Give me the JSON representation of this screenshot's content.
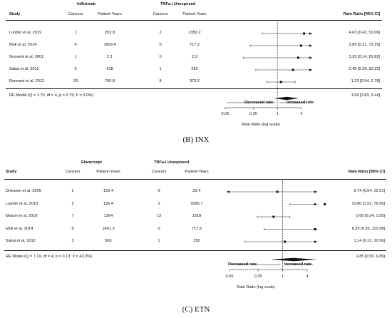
{
  "chart_data": [
    {
      "type": "forest",
      "caption": "(B) INX",
      "group_headers": [
        "Infliximab",
        "TNFa-i Unexposed"
      ],
      "column_headers": [
        "Study",
        "Cancers",
        "Patient-Years",
        "Cancers",
        "Patient-Years",
        "Rate Ratio [95% CI]"
      ],
      "rows": [
        {
          "study": "Lunder et al, 2019",
          "cancers_a": "1",
          "py_a": "253.8",
          "cancers_b": "2",
          "py_b": "2350.2",
          "rr_text": "4.63 [0.42, 51.06]",
          "rr": 4.63,
          "lo": 0.42,
          "hi": 51.06
        },
        {
          "study": "Mok et al, 2014",
          "cancers_a": "4",
          "py_a": "1659.4",
          "cancers_b": "0",
          "py_b": "717.2",
          "rr_text": "3.89 [0.21, 72.25]",
          "rr": 3.89,
          "lo": 0.21,
          "hi": 72.25
        },
        {
          "study": "Nossent et al, 2001",
          "cancers_a": "1",
          "py_a": "2.1",
          "cancers_b": "0",
          "py_b": "2.3",
          "rr_text": "3.33 [0.14, 81.82]",
          "rr": 3.33,
          "lo": 0.14,
          "hi": 81.82
        },
        {
          "study": "Sakai et al, 2012",
          "cancers_a": "6",
          "py_a": "618",
          "cancers_b": "1",
          "py_b": "252",
          "rr_text": "2.45 [0.29, 20.32]",
          "rr": 2.45,
          "lo": 0.29,
          "hi": 20.32
        },
        {
          "study": "Rennard et al, 2012",
          "cancers_a": "20",
          "py_a": "760.8",
          "cancers_b": "8",
          "py_b": "373.2",
          "rr_text": "1.23 [0.54, 2.78]",
          "rr": 1.23,
          "lo": 0.54,
          "hi": 2.78
        }
      ],
      "summary": {
        "label": "RE Model (Q = 1.70, df = 4, p = 0.79; I² = 0.0%)",
        "rr_text": "1.69 [0.83, 3.44]",
        "rr": 1.69,
        "lo": 0.83,
        "hi": 3.44
      },
      "direction_left": "Decreased rate",
      "direction_right": "Increased rate",
      "ticks": [
        "0.05",
        "0.25",
        "1",
        "4"
      ],
      "xlabel": "Rate Ratio (log scale)",
      "scale": "log",
      "xlim": [
        0.05,
        4
      ]
    },
    {
      "type": "forest",
      "caption": "(C) ETN",
      "group_headers": [
        "Etanercept",
        "TNFa-i Unexposed"
      ],
      "column_headers": [
        "Study",
        "Cancers",
        "Patient-Years",
        "Cancers",
        "Patient-Years",
        "Rate Ratio [95% CI]"
      ],
      "rows": [
        {
          "study": "Driessen et al, 2009",
          "cancers_a": "2",
          "py_a": "150.4",
          "cancers_b": "0",
          "py_b": "22.4",
          "rr_text": "0.74 [0.04, 15.51]",
          "rr": 0.74,
          "lo": 0.04,
          "hi": 15.51
        },
        {
          "study": "Lunder et al, 2019",
          "cancers_a": "2",
          "py_a": "190.4",
          "cancers_b": "2",
          "py_b": "2056.7",
          "rr_text": "10.80 [1.52, 76.69]",
          "rr": 10.8,
          "lo": 1.52,
          "hi": 76.69
        },
        {
          "study": "Mason et al, 2018",
          "cancers_a": "7",
          "py_a": "1364",
          "cancers_b": "13",
          "py_b": "1518",
          "rr_text": "0.60 [0.24, 1.50]",
          "rr": 0.6,
          "lo": 0.24,
          "hi": 1.5
        },
        {
          "study": "Mok et al, 2014",
          "cancers_a": "6",
          "py_a": "1491.3",
          "cancers_b": "0",
          "py_b": "717.2",
          "rr_text": "6.25 [0.35, 110.98]",
          "rr": 6.25,
          "lo": 0.35,
          "hi": 110.98
        },
        {
          "study": "Sakai et al, 2012",
          "cancers_a": "3",
          "py_a": "663",
          "cancers_b": "1",
          "py_b": "252",
          "rr_text": "1.14 [0.12, 10.96]",
          "rr": 1.14,
          "lo": 0.12,
          "hi": 10.96
        }
      ],
      "summary": {
        "label": "RE Model (Q = 7.19, df = 4, p = 0.13; I² = 43.3%)",
        "rr_text": "1.85 [0.50, 6.89]",
        "rr": 1.85,
        "lo": 0.5,
        "hi": 6.89
      },
      "direction_left": "Decreased rate",
      "direction_right": "Increased rate",
      "ticks": [
        "0.05",
        "0.25",
        "1",
        "4"
      ],
      "xlabel": "Rate Ratio (log scale)",
      "scale": "log",
      "xlim": [
        0.05,
        4
      ]
    }
  ]
}
